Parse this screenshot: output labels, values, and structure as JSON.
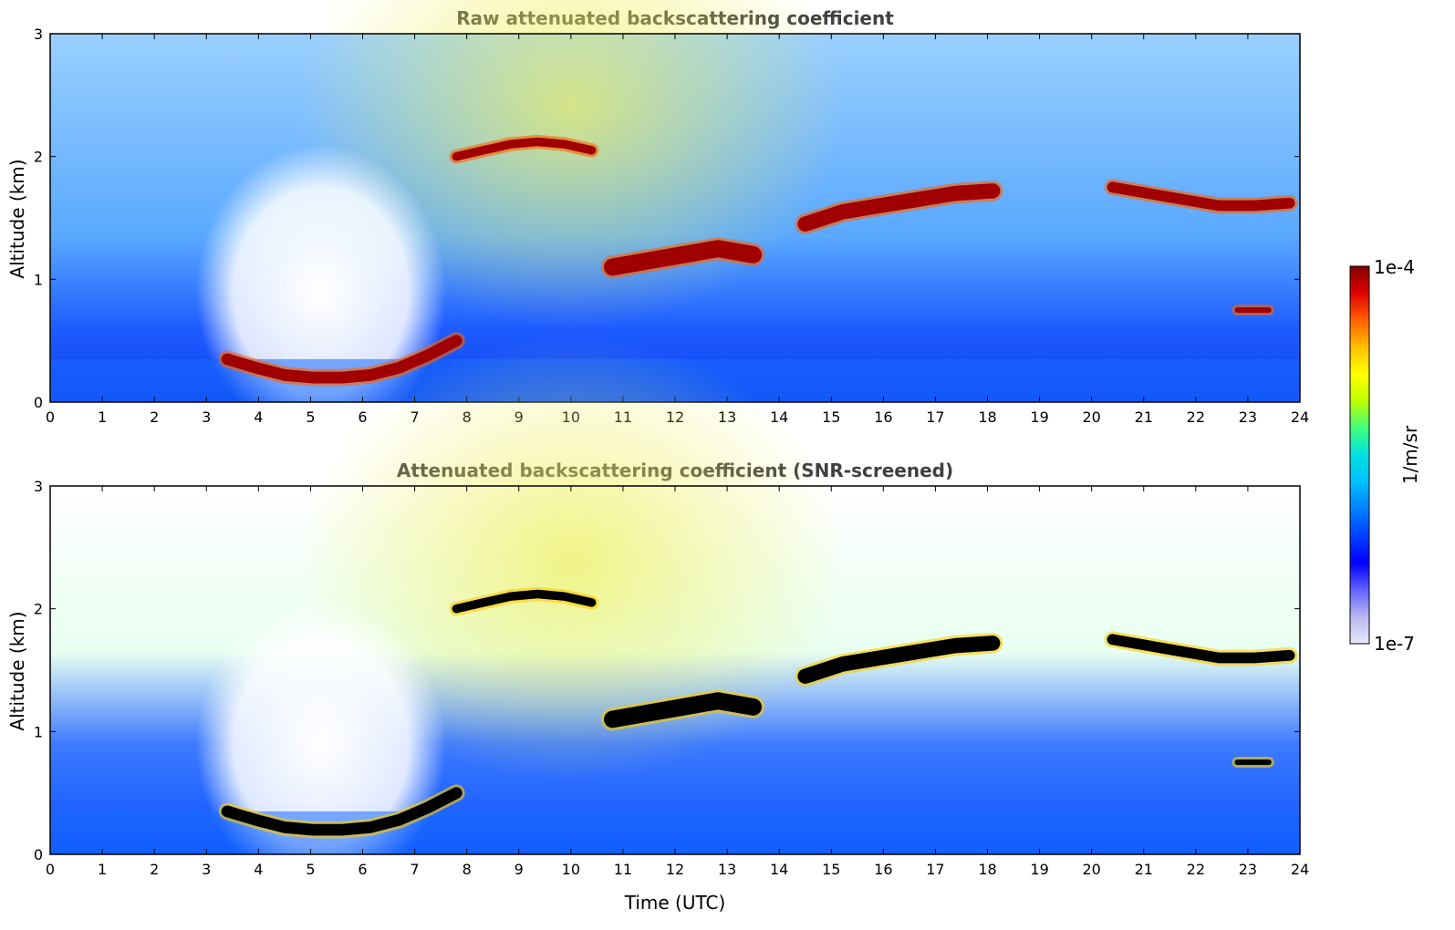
{
  "chart_data": [
    {
      "type": "heatmap",
      "title": "Raw attenuated backscattering coefficient",
      "xlabel": "",
      "ylabel": "Altitude (km)",
      "xlim": [
        0,
        24
      ],
      "ylim": [
        0,
        3
      ],
      "x_ticks": [
        "0",
        "1",
        "2",
        "3",
        "4",
        "5",
        "6",
        "7",
        "8",
        "9",
        "10",
        "11",
        "12",
        "13",
        "14",
        "15",
        "16",
        "17",
        "18",
        "19",
        "20",
        "21",
        "22",
        "23",
        "24"
      ],
      "y_ticks": [
        "0",
        "1",
        "2",
        "3"
      ],
      "cloud_layers": [
        {
          "x": [
            3.4,
            7.8
          ],
          "y": [
            0.18,
            0.45
          ],
          "path_y": [
            0.35,
            0.28,
            0.22,
            0.2,
            0.2,
            0.22,
            0.28,
            0.38,
            0.5
          ]
        },
        {
          "x": [
            7.8,
            10.4
          ],
          "y": [
            1.95,
            2.15
          ],
          "path_y": [
            2.0,
            2.05,
            2.1,
            2.12,
            2.1,
            2.05
          ]
        },
        {
          "x": [
            10.8,
            13.5
          ],
          "y": [
            1.0,
            1.4
          ],
          "path_y": [
            1.1,
            1.15,
            1.2,
            1.25,
            1.2
          ]
        },
        {
          "x": [
            14.5,
            18.1
          ],
          "y": [
            1.4,
            1.75
          ],
          "path_y": [
            1.45,
            1.55,
            1.6,
            1.65,
            1.7,
            1.72
          ]
        },
        {
          "x": [
            20.4,
            23.8
          ],
          "y": [
            1.55,
            1.8
          ],
          "path_y": [
            1.75,
            1.7,
            1.65,
            1.6,
            1.6,
            1.62
          ]
        },
        {
          "x": [
            22.8,
            23.4
          ],
          "y": [
            0.7,
            0.8
          ],
          "path_y": [
            0.75,
            0.75
          ]
        }
      ]
    },
    {
      "type": "heatmap",
      "title": "Attenuated backscattering coefficient (SNR-screened)",
      "xlabel": "Time (UTC)",
      "ylabel": "Altitude (km)",
      "xlim": [
        0,
        24
      ],
      "ylim": [
        0,
        3
      ],
      "x_ticks": [
        "0",
        "1",
        "2",
        "3",
        "4",
        "5",
        "6",
        "7",
        "8",
        "9",
        "10",
        "11",
        "12",
        "13",
        "14",
        "15",
        "16",
        "17",
        "18",
        "19",
        "20",
        "21",
        "22",
        "23",
        "24"
      ],
      "y_ticks": [
        "0",
        "1",
        "2",
        "3"
      ],
      "cloud_layers": [
        {
          "x": [
            3.4,
            7.8
          ],
          "y": [
            0.18,
            0.45
          ],
          "path_y": [
            0.35,
            0.28,
            0.22,
            0.2,
            0.2,
            0.22,
            0.28,
            0.38,
            0.5
          ]
        },
        {
          "x": [
            7.8,
            10.4
          ],
          "y": [
            1.95,
            2.15
          ],
          "path_y": [
            2.0,
            2.05,
            2.1,
            2.12,
            2.1,
            2.05
          ]
        },
        {
          "x": [
            10.8,
            13.5
          ],
          "y": [
            1.0,
            1.4
          ],
          "path_y": [
            1.1,
            1.15,
            1.2,
            1.25,
            1.2
          ]
        },
        {
          "x": [
            14.5,
            18.1
          ],
          "y": [
            1.4,
            1.75
          ],
          "path_y": [
            1.45,
            1.55,
            1.6,
            1.65,
            1.7,
            1.72
          ]
        },
        {
          "x": [
            20.4,
            23.8
          ],
          "y": [
            1.55,
            1.8
          ],
          "path_y": [
            1.75,
            1.7,
            1.65,
            1.6,
            1.6,
            1.62
          ]
        },
        {
          "x": [
            22.8,
            23.4
          ],
          "y": [
            0.7,
            0.8
          ],
          "path_y": [
            0.75,
            0.75
          ]
        }
      ]
    }
  ],
  "colorbar": {
    "label": "1/m/sr",
    "max_label": "1e-4",
    "min_label": "1e-7",
    "colors": [
      "#e8e8f8",
      "#b8b8f0",
      "#6060ff",
      "#0000ff",
      "#0040ff",
      "#0080ff",
      "#00c0ff",
      "#00e0e0",
      "#40ff80",
      "#c0ff00",
      "#ffff00",
      "#ffc000",
      "#ff6000",
      "#e00000",
      "#800000"
    ]
  },
  "palette": {
    "background_noise": [
      "#4080ff",
      "#2060ff",
      "#00c0ff",
      "#80ff80",
      "#ffffff"
    ],
    "cloud": "#a00000",
    "cloud_screened": "#000000"
  }
}
